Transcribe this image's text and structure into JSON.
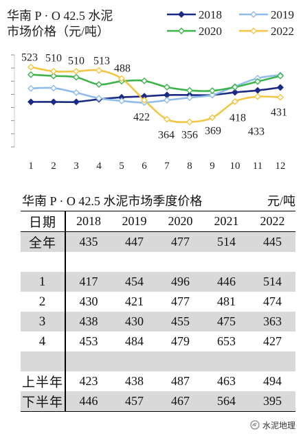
{
  "chart_data": {
    "type": "line",
    "title": [
      "华南 P · O 42.5 水泥",
      "市场价格（元/吨）"
    ],
    "xlabel": "",
    "ylabel": "",
    "x": [
      1,
      2,
      3,
      4,
      5,
      6,
      7,
      8,
      9,
      10,
      11,
      12
    ],
    "x_tick_labels": [
      "1",
      "2",
      "3",
      "4",
      "5",
      "6",
      "7",
      "8",
      "9",
      "10",
      "11",
      "12"
    ],
    "ylim": [
      280,
      560
    ],
    "y_tick_step": 40,
    "y_tick_labels_shown": false,
    "grid": false,
    "smooth": true,
    "legend": "top-right",
    "series": [
      {
        "name": "2018",
        "color": "#1b2a84",
        "marker_fill": "#1b2a84",
        "values": [
          417,
          417,
          417,
          425,
          431,
          434,
          438,
          438,
          438,
          446,
          452,
          461
        ]
      },
      {
        "name": "2019",
        "color": "#8fbce8",
        "marker_fill": "#ffffff",
        "values": [
          458,
          459,
          445,
          428,
          420,
          415,
          422,
          430,
          438,
          464,
          489,
          499
        ]
      },
      {
        "name": "2020",
        "color": "#3cb44a",
        "marker_fill": "#ffffff",
        "values": [
          500,
          496,
          492,
          470,
          480,
          481,
          462,
          452,
          451,
          462,
          479,
          496
        ]
      },
      {
        "name": "2022",
        "color": "#f4c542",
        "marker_fill": "#ffffff",
        "data_labels": true,
        "values": [
          523,
          510,
          510,
          513,
          488,
          422,
          364,
          356,
          369,
          418,
          433,
          431
        ]
      }
    ]
  },
  "table": {
    "title": "华南 P · O 42.5 水泥市场季度价格",
    "unit": "元/吨",
    "header": [
      "日期",
      "2018",
      "2019",
      "2020",
      "2021",
      "2022"
    ],
    "rows": [
      {
        "label": "全年",
        "values": [
          435,
          447,
          477,
          514,
          445
        ]
      },
      {
        "label": "1",
        "values": [
          417,
          454,
          496,
          446,
          514
        ]
      },
      {
        "label": "2",
        "values": [
          430,
          421,
          477,
          481,
          474
        ]
      },
      {
        "label": "3",
        "values": [
          438,
          430,
          455,
          475,
          363
        ]
      },
      {
        "label": "4",
        "values": [
          453,
          484,
          479,
          653,
          427
        ]
      },
      {
        "label": "上半年",
        "values": [
          423,
          438,
          487,
          463,
          494
        ]
      },
      {
        "label": "下半年",
        "values": [
          446,
          457,
          467,
          564,
          395
        ]
      }
    ]
  },
  "watermark": {
    "text": "水泥地理",
    "icon": "wechat-icon"
  }
}
